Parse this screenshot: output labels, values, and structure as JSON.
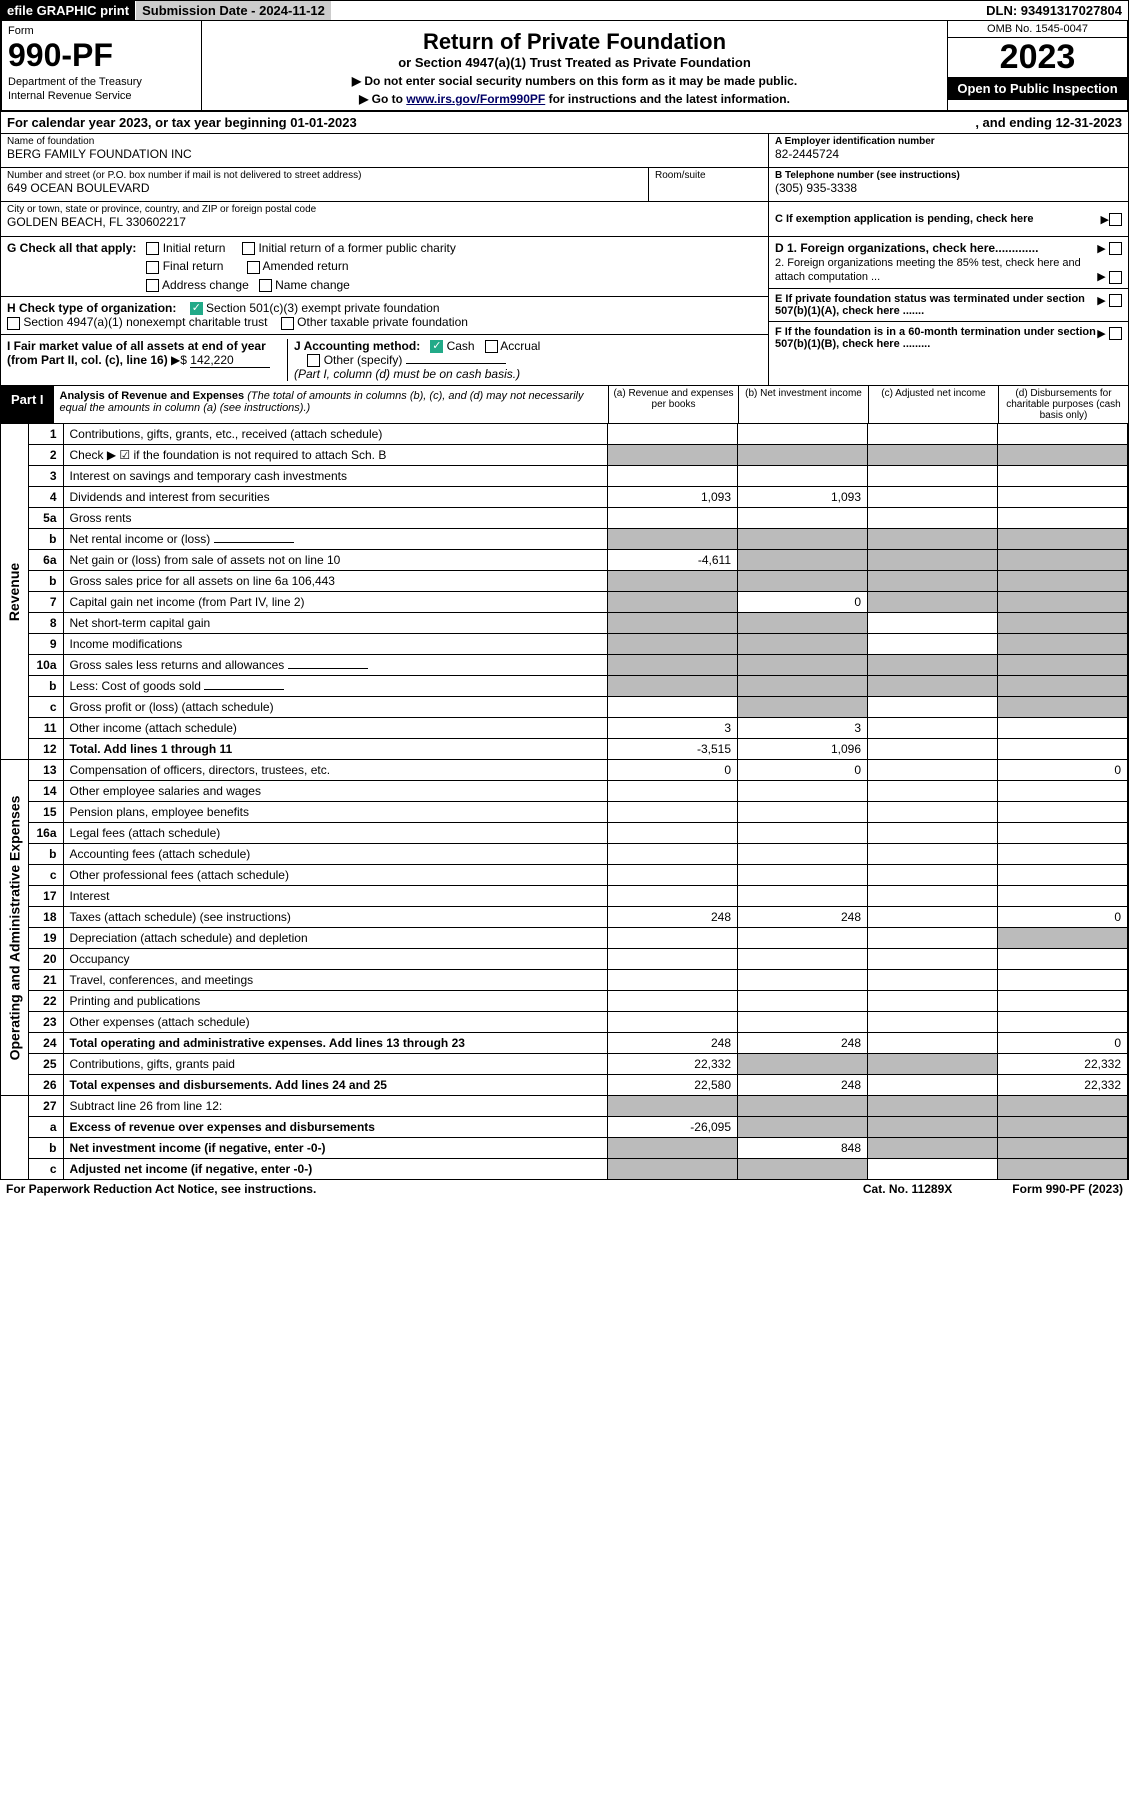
{
  "topbar": {
    "efile": "efile GRAPHIC print",
    "sub_date_label": "Submission Date - 2024-11-12",
    "dln": "DLN: 93491317027804"
  },
  "header": {
    "form_label": "Form",
    "form_no": "990-PF",
    "dept1": "Department of the Treasury",
    "dept2": "Internal Revenue Service",
    "title": "Return of Private Foundation",
    "subtitle": "or Section 4947(a)(1) Trust Treated as Private Foundation",
    "note1": "▶ Do not enter social security numbers on this form as it may be made public.",
    "note2_pre": "▶ Go to ",
    "note2_link": "www.irs.gov/Form990PF",
    "note2_post": " for instructions and the latest information.",
    "omb": "OMB No. 1545-0047",
    "year": "2023",
    "open": "Open to Public Inspection"
  },
  "calyear": {
    "text1": "For calendar year 2023, or tax year beginning 01-01-2023",
    "text2": ", and ending 12-31-2023"
  },
  "info": {
    "name_lbl": "Name of foundation",
    "name": "BERG FAMILY FOUNDATION INC",
    "addr_lbl": "Number and street (or P.O. box number if mail is not delivered to street address)",
    "addr": "649 OCEAN BOULEVARD",
    "room_lbl": "Room/suite",
    "city_lbl": "City or town, state or province, country, and ZIP or foreign postal code",
    "city": "GOLDEN BEACH, FL  330602217",
    "a_lbl": "A Employer identification number",
    "a_val": "82-2445724",
    "b_lbl": "B Telephone number (see instructions)",
    "b_val": "(305) 935-3338",
    "c_lbl": "C If exemption application is pending, check here"
  },
  "g": {
    "label": "G Check all that apply:",
    "o1": "Initial return",
    "o2": "Initial return of a former public charity",
    "o3": "Final return",
    "o4": "Amended return",
    "o5": "Address change",
    "o6": "Name change"
  },
  "h": {
    "label": "H Check type of organization:",
    "o1": "Section 501(c)(3) exempt private foundation",
    "o2": "Section 4947(a)(1) nonexempt charitable trust",
    "o3": "Other taxable private foundation"
  },
  "i": {
    "label": "I Fair market value of all assets at end of year (from Part II, col. (c), line 16)",
    "arrow": "▶$",
    "val": "142,220"
  },
  "j": {
    "label": "J Accounting method:",
    "o1": "Cash",
    "o2": "Accrual",
    "o3": "Other (specify)",
    "note": "(Part I, column (d) must be on cash basis.)"
  },
  "d": {
    "d1": "D 1. Foreign organizations, check here.............",
    "d2": "2. Foreign organizations meeting the 85% test, check here and attach computation ..."
  },
  "e": {
    "text": "E  If private foundation status was terminated under section 507(b)(1)(A), check here ......."
  },
  "f": {
    "text": "F  If the foundation is in a 60-month termination under section 507(b)(1)(B), check here ........."
  },
  "part1": {
    "label": "Part I",
    "desc_title": "Analysis of Revenue and Expenses",
    "desc_sub": "(The total of amounts in columns (b), (c), and (d) may not necessarily equal the amounts in column (a) (see instructions).)",
    "col_a": "(a)   Revenue and expenses per books",
    "col_b": "(b)   Net investment income",
    "col_c": "(c)   Adjusted net income",
    "col_d": "(d)   Disbursements for charitable purposes (cash basis only)"
  },
  "sections": {
    "revenue": "Revenue",
    "expenses": "Operating and Administrative Expenses"
  },
  "rows": [
    {
      "n": "1",
      "d": "Contributions, gifts, grants, etc., received (attach schedule)",
      "a": "",
      "b": "",
      "c": "",
      "dd": "",
      "gc": "",
      "gd": ""
    },
    {
      "n": "2",
      "d": "Check ▶ ☑ if the foundation is not required to attach Sch. B",
      "a": "",
      "b": "",
      "c": "",
      "dd": "",
      "gb": "g",
      "gc": "g",
      "gd": "g",
      "ga": "g"
    },
    {
      "n": "3",
      "d": "Interest on savings and temporary cash investments",
      "a": "",
      "b": "",
      "c": "",
      "dd": ""
    },
    {
      "n": "4",
      "d": "Dividends and interest from securities",
      "a": "1,093",
      "b": "1,093",
      "c": "",
      "dd": ""
    },
    {
      "n": "5a",
      "d": "Gross rents",
      "a": "",
      "b": "",
      "c": "",
      "dd": ""
    },
    {
      "n": "b",
      "d": "Net rental income or (loss)",
      "a": "",
      "b": "",
      "c": "",
      "dd": "",
      "ga": "g",
      "gb": "g",
      "gc": "g",
      "gd": "g",
      "inline": true
    },
    {
      "n": "6a",
      "d": "Net gain or (loss) from sale of assets not on line 10",
      "a": "-4,611",
      "b": "",
      "c": "",
      "dd": "",
      "gb": "g",
      "gc": "g",
      "gd": "g"
    },
    {
      "n": "b",
      "d": "Gross sales price for all assets on line 6a",
      "inline_val": "106,443",
      "a": "",
      "b": "",
      "c": "",
      "dd": "",
      "ga": "g",
      "gb": "g",
      "gc": "g",
      "gd": "g"
    },
    {
      "n": "7",
      "d": "Capital gain net income (from Part IV, line 2)",
      "a": "",
      "b": "0",
      "c": "",
      "dd": "",
      "ga": "g",
      "gc": "g",
      "gd": "g"
    },
    {
      "n": "8",
      "d": "Net short-term capital gain",
      "a": "",
      "b": "",
      "c": "",
      "dd": "",
      "ga": "g",
      "gb": "g",
      "gd": "g"
    },
    {
      "n": "9",
      "d": "Income modifications",
      "a": "",
      "b": "",
      "c": "",
      "dd": "",
      "ga": "g",
      "gb": "g",
      "gd": "g"
    },
    {
      "n": "10a",
      "d": "Gross sales less returns and allowances",
      "a": "",
      "b": "",
      "c": "",
      "dd": "",
      "inline": true,
      "ga": "g",
      "gb": "g",
      "gc": "g",
      "gd": "g"
    },
    {
      "n": "b",
      "d": "Less: Cost of goods sold",
      "a": "",
      "b": "",
      "c": "",
      "dd": "",
      "inline": true,
      "ga": "g",
      "gb": "g",
      "gc": "g",
      "gd": "g"
    },
    {
      "n": "c",
      "d": "Gross profit or (loss) (attach schedule)",
      "a": "",
      "b": "",
      "c": "",
      "dd": "",
      "gb": "g",
      "gd": "g"
    },
    {
      "n": "11",
      "d": "Other income (attach schedule)",
      "a": "3",
      "b": "3",
      "c": "",
      "dd": ""
    },
    {
      "n": "12",
      "d": "Total. Add lines 1 through 11",
      "a": "-3,515",
      "b": "1,096",
      "c": "",
      "dd": "",
      "bold": true
    }
  ],
  "exp_rows": [
    {
      "n": "13",
      "d": "Compensation of officers, directors, trustees, etc.",
      "a": "0",
      "b": "0",
      "c": "",
      "dd": "0"
    },
    {
      "n": "14",
      "d": "Other employee salaries and wages",
      "a": "",
      "b": "",
      "c": "",
      "dd": ""
    },
    {
      "n": "15",
      "d": "Pension plans, employee benefits",
      "a": "",
      "b": "",
      "c": "",
      "dd": ""
    },
    {
      "n": "16a",
      "d": "Legal fees (attach schedule)",
      "a": "",
      "b": "",
      "c": "",
      "dd": ""
    },
    {
      "n": "b",
      "d": "Accounting fees (attach schedule)",
      "a": "",
      "b": "",
      "c": "",
      "dd": ""
    },
    {
      "n": "c",
      "d": "Other professional fees (attach schedule)",
      "a": "",
      "b": "",
      "c": "",
      "dd": ""
    },
    {
      "n": "17",
      "d": "Interest",
      "a": "",
      "b": "",
      "c": "",
      "dd": ""
    },
    {
      "n": "18",
      "d": "Taxes (attach schedule) (see instructions)",
      "a": "248",
      "b": "248",
      "c": "",
      "dd": "0"
    },
    {
      "n": "19",
      "d": "Depreciation (attach schedule) and depletion",
      "a": "",
      "b": "",
      "c": "",
      "dd": "",
      "gd": "g"
    },
    {
      "n": "20",
      "d": "Occupancy",
      "a": "",
      "b": "",
      "c": "",
      "dd": ""
    },
    {
      "n": "21",
      "d": "Travel, conferences, and meetings",
      "a": "",
      "b": "",
      "c": "",
      "dd": ""
    },
    {
      "n": "22",
      "d": "Printing and publications",
      "a": "",
      "b": "",
      "c": "",
      "dd": ""
    },
    {
      "n": "23",
      "d": "Other expenses (attach schedule)",
      "a": "",
      "b": "",
      "c": "",
      "dd": ""
    },
    {
      "n": "24",
      "d": "Total operating and administrative expenses. Add lines 13 through 23",
      "a": "248",
      "b": "248",
      "c": "",
      "dd": "0",
      "bold": true
    },
    {
      "n": "25",
      "d": "Contributions, gifts, grants paid",
      "a": "22,332",
      "b": "",
      "c": "",
      "dd": "22,332",
      "gb": "g",
      "gc": "g"
    },
    {
      "n": "26",
      "d": "Total expenses and disbursements. Add lines 24 and 25",
      "a": "22,580",
      "b": "248",
      "c": "",
      "dd": "22,332",
      "bold": true
    }
  ],
  "sum_rows": [
    {
      "n": "27",
      "d": "Subtract line 26 from line 12:",
      "a": "",
      "b": "",
      "c": "",
      "dd": "",
      "ga": "g",
      "gb": "g",
      "gc": "g",
      "gd": "g"
    },
    {
      "n": "a",
      "d": "Excess of revenue over expenses and disbursements",
      "a": "-26,095",
      "b": "",
      "c": "",
      "dd": "",
      "bold": true,
      "gb": "g",
      "gc": "g",
      "gd": "g"
    },
    {
      "n": "b",
      "d": "Net investment income (if negative, enter -0-)",
      "a": "",
      "b": "848",
      "c": "",
      "dd": "",
      "bold": true,
      "ga": "g",
      "gc": "g",
      "gd": "g"
    },
    {
      "n": "c",
      "d": "Adjusted net income (if negative, enter -0-)",
      "a": "",
      "b": "",
      "c": "",
      "dd": "",
      "bold": true,
      "ga": "g",
      "gb": "g",
      "gd": "g"
    }
  ],
  "footer": {
    "left": "For Paperwork Reduction Act Notice, see instructions.",
    "mid": "Cat. No. 11289X",
    "right": "Form 990-PF (2023)"
  }
}
